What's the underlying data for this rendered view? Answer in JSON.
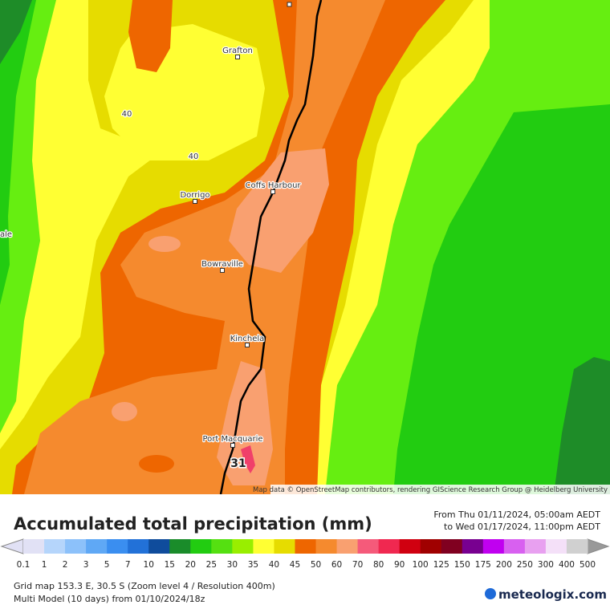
{
  "map": {
    "places": [
      "Grafton",
      "Coffs Harbour",
      "Dorrigo",
      "Bowraville",
      "Kinchela",
      "Port Macquarie"
    ],
    "edge_label": "ale",
    "contour_labels": [
      "40",
      "40"
    ],
    "max_label": "31",
    "attribution": "Map data © OpenStreetMap contributors, rendering GIScience Research Group @ Heidelberg University"
  },
  "legend": {
    "title": "Accumulated total precipitation (mm)",
    "date_from": "From Thu 01/11/2024, 05:00am AEDT",
    "date_to": "to Wed 01/17/2024, 11:00pm AEDT",
    "labels": [
      "0.1",
      "1",
      "2",
      "3",
      "5",
      "7",
      "10",
      "15",
      "20",
      "25",
      "30",
      "35",
      "40",
      "45",
      "50",
      "60",
      "70",
      "80",
      "90",
      "100",
      "125",
      "150",
      "175",
      "200",
      "250",
      "300",
      "400",
      "500"
    ],
    "colors": [
      "#e1e1f5",
      "#b5d5fb",
      "#8cc1fa",
      "#5fa8f5",
      "#3a8ef0",
      "#2271d8",
      "#0f4c9c",
      "#1a8c2a",
      "#22cc11",
      "#55e011",
      "#99ee00",
      "#ffff33",
      "#e6dc00",
      "#ee6600",
      "#f58a2e",
      "#f9a070",
      "#f55a7a",
      "#f02850",
      "#d00010",
      "#a00000",
      "#800020",
      "#780090",
      "#c000f0",
      "#d860f0",
      "#e8a0f0",
      "#f4e0f8",
      "#d0d0d0"
    ]
  },
  "footer": {
    "line1": "Grid map 153.3 E, 30.5 S (Zoom level 4 / Resolution 400m)",
    "line2": "Multi Model (10 days) from 01/10/2024/18z",
    "brand": "meteologix.com"
  }
}
